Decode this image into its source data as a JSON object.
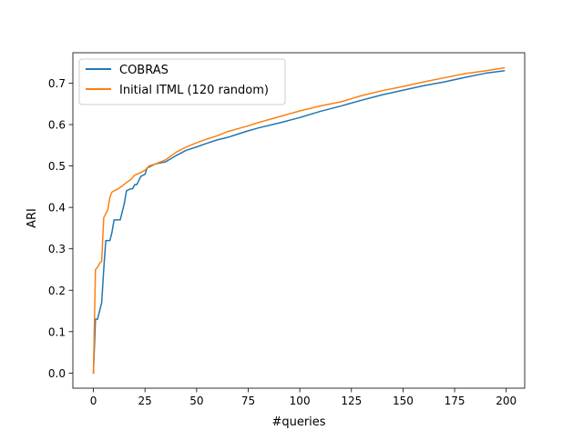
{
  "chart_data": {
    "type": "line",
    "title": "",
    "xlabel": "#queries",
    "ylabel": "ARI",
    "xlim": [
      -9.95,
      208.95
    ],
    "ylim": [
      -0.0365,
      0.7735
    ],
    "xticks": [
      0,
      25,
      50,
      75,
      100,
      125,
      150,
      175,
      200
    ],
    "xtick_labels": [
      "0",
      "25",
      "50",
      "75",
      "100",
      "125",
      "150",
      "175",
      "200"
    ],
    "yticks": [
      0.0,
      0.1,
      0.2,
      0.3,
      0.4,
      0.5,
      0.6,
      0.7
    ],
    "ytick_labels": [
      "0.0",
      "0.1",
      "0.2",
      "0.3",
      "0.4",
      "0.5",
      "0.6",
      "0.7"
    ],
    "grid": false,
    "legend_position": "top-left",
    "series": [
      {
        "name": "COBRAS",
        "color": "#1f77b4",
        "points": [
          [
            0,
            0.0
          ],
          [
            1,
            0.13
          ],
          [
            2,
            0.13
          ],
          [
            3,
            0.15
          ],
          [
            4,
            0.17
          ],
          [
            5,
            0.25
          ],
          [
            6,
            0.32
          ],
          [
            8,
            0.32
          ],
          [
            9,
            0.34
          ],
          [
            10,
            0.37
          ],
          [
            13,
            0.37
          ],
          [
            14,
            0.39
          ],
          [
            15,
            0.41
          ],
          [
            16,
            0.44
          ],
          [
            18,
            0.445
          ],
          [
            19,
            0.445
          ],
          [
            20,
            0.455
          ],
          [
            21,
            0.455
          ],
          [
            22,
            0.465
          ],
          [
            23,
            0.475
          ],
          [
            25,
            0.48
          ],
          [
            26,
            0.495
          ],
          [
            28,
            0.5
          ],
          [
            30,
            0.505
          ],
          [
            35,
            0.51
          ],
          [
            40,
            0.525
          ],
          [
            45,
            0.538
          ],
          [
            50,
            0.546
          ],
          [
            55,
            0.555
          ],
          [
            60,
            0.563
          ],
          [
            65,
            0.569
          ],
          [
            70,
            0.577
          ],
          [
            75,
            0.585
          ],
          [
            80,
            0.592
          ],
          [
            90,
            0.604
          ],
          [
            100,
            0.617
          ],
          [
            110,
            0.632
          ],
          [
            120,
            0.645
          ],
          [
            130,
            0.659
          ],
          [
            140,
            0.672
          ],
          [
            150,
            0.683
          ],
          [
            160,
            0.694
          ],
          [
            170,
            0.703
          ],
          [
            180,
            0.714
          ],
          [
            190,
            0.724
          ],
          [
            199,
            0.73
          ]
        ]
      },
      {
        "name": "Initial ITML (120 random)",
        "color": "#ff7f0e",
        "points": [
          [
            0,
            0.0
          ],
          [
            1,
            0.25
          ],
          [
            2,
            0.255
          ],
          [
            3,
            0.265
          ],
          [
            4,
            0.27
          ],
          [
            5,
            0.375
          ],
          [
            6,
            0.385
          ],
          [
            7,
            0.395
          ],
          [
            8,
            0.425
          ],
          [
            9,
            0.437
          ],
          [
            10,
            0.44
          ],
          [
            12,
            0.445
          ],
          [
            14,
            0.452
          ],
          [
            16,
            0.46
          ],
          [
            18,
            0.467
          ],
          [
            20,
            0.478
          ],
          [
            22,
            0.482
          ],
          [
            24,
            0.487
          ],
          [
            25,
            0.49
          ],
          [
            27,
            0.5
          ],
          [
            30,
            0.505
          ],
          [
            35,
            0.515
          ],
          [
            40,
            0.533
          ],
          [
            45,
            0.546
          ],
          [
            50,
            0.556
          ],
          [
            55,
            0.565
          ],
          [
            60,
            0.573
          ],
          [
            65,
            0.583
          ],
          [
            70,
            0.59
          ],
          [
            75,
            0.597
          ],
          [
            80,
            0.605
          ],
          [
            90,
            0.619
          ],
          [
            100,
            0.633
          ],
          [
            110,
            0.645
          ],
          [
            120,
            0.655
          ],
          [
            130,
            0.67
          ],
          [
            140,
            0.682
          ],
          [
            150,
            0.692
          ],
          [
            160,
            0.703
          ],
          [
            170,
            0.713
          ],
          [
            180,
            0.723
          ],
          [
            190,
            0.73
          ],
          [
            199,
            0.737
          ]
        ]
      }
    ]
  }
}
